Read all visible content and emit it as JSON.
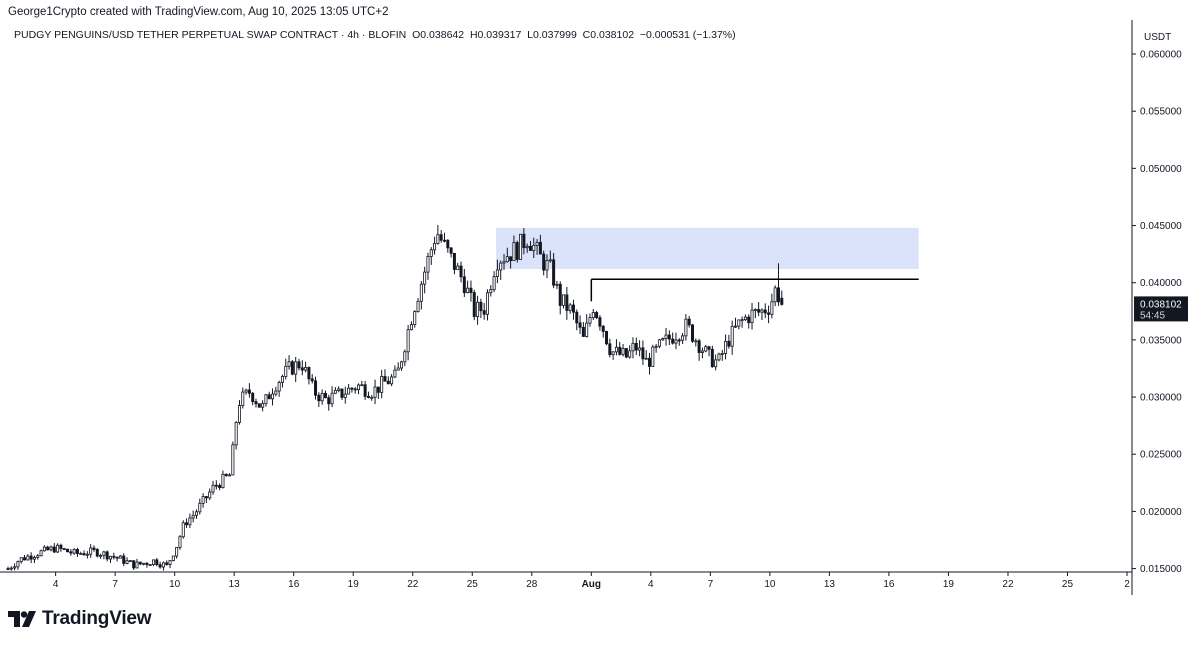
{
  "header": {
    "credit": "George1Crypto created with TradingView.com, Aug 10, 2025 13:05 UTC+2"
  },
  "legend": {
    "symbol": "PUDGY PENGUINS/USD TETHER PERPETUAL SWAP CONTRACT · 4h · BLOFIN",
    "open_label": "O",
    "open": "0.038642",
    "high_label": "H",
    "high": "0.039317",
    "low_label": "L",
    "low": "0.037999",
    "close_label": "C",
    "close": "0.038102",
    "change": "−0.000531 (−1.37%)"
  },
  "price_axis": {
    "currency": "USDT",
    "last_price": "0.038102",
    "countdown": "54:45"
  },
  "brand": {
    "name": "TradingView"
  },
  "colors": {
    "candle": "#131722",
    "zone": "#dbe3fb",
    "price_tag_bg": "#131722",
    "price_tag_fg": "#ffffff"
  },
  "chart_data": {
    "type": "candlestick",
    "timeframe": "4h",
    "ylim": [
      0.0147,
      0.0628
    ],
    "y_ticks": [
      "0.060000",
      "0.055000",
      "0.050000",
      "0.045000",
      "0.040000",
      "0.035000",
      "0.030000",
      "0.025000",
      "0.020000",
      "0.015000"
    ],
    "y_tick_values": [
      0.06,
      0.055,
      0.05,
      0.045,
      0.04,
      0.035,
      0.03,
      0.025,
      0.02,
      0.015
    ],
    "x_ticks": [
      {
        "label": "4",
        "day": 4
      },
      {
        "label": "7",
        "day": 7
      },
      {
        "label": "10",
        "day": 10
      },
      {
        "label": "13",
        "day": 13
      },
      {
        "label": "16",
        "day": 16
      },
      {
        "label": "19",
        "day": 19
      },
      {
        "label": "22",
        "day": 22
      },
      {
        "label": "25",
        "day": 25
      },
      {
        "label": "28",
        "day": 28
      },
      {
        "label": "Aug",
        "day": 31
      },
      {
        "label": "4",
        "day": 34
      },
      {
        "label": "7",
        "day": 37
      },
      {
        "label": "10",
        "day": 40
      },
      {
        "label": "13",
        "day": 43
      },
      {
        "label": "16",
        "day": 46
      },
      {
        "label": "19",
        "day": 49
      },
      {
        "label": "22",
        "day": 52
      },
      {
        "label": "25",
        "day": 55
      },
      {
        "label": "2",
        "day": 58
      }
    ],
    "x_range_days": [
      1.6,
      58.1
    ],
    "anchors": [
      [
        1.6,
        0.015
      ],
      [
        2.2,
        0.0158
      ],
      [
        3.0,
        0.0163
      ],
      [
        4.0,
        0.0168
      ],
      [
        5.0,
        0.0163
      ],
      [
        6.0,
        0.0165
      ],
      [
        7.0,
        0.016
      ],
      [
        8.0,
        0.0153
      ],
      [
        9.0,
        0.0157
      ],
      [
        9.6,
        0.0152
      ],
      [
        10.1,
        0.017
      ],
      [
        10.5,
        0.019
      ],
      [
        11.0,
        0.0198
      ],
      [
        12.0,
        0.0222
      ],
      [
        12.8,
        0.0232
      ],
      [
        13.2,
        0.0295
      ],
      [
        13.8,
        0.0305
      ],
      [
        14.4,
        0.029
      ],
      [
        15.0,
        0.031
      ],
      [
        15.8,
        0.0325
      ],
      [
        16.4,
        0.033
      ],
      [
        17.0,
        0.0305
      ],
      [
        17.6,
        0.0298
      ],
      [
        18.3,
        0.0302
      ],
      [
        19.2,
        0.031
      ],
      [
        20.0,
        0.0305
      ],
      [
        20.5,
        0.0312
      ],
      [
        21.2,
        0.0318
      ],
      [
        22.0,
        0.0375
      ],
      [
        22.6,
        0.041
      ],
      [
        23.2,
        0.0445
      ],
      [
        23.8,
        0.0425
      ],
      [
        24.6,
        0.04
      ],
      [
        25.1,
        0.0375
      ],
      [
        25.6,
        0.0378
      ],
      [
        26.2,
        0.042
      ],
      [
        26.8,
        0.0425
      ],
      [
        27.3,
        0.043
      ],
      [
        27.8,
        0.044
      ],
      [
        28.5,
        0.042
      ],
      [
        29.0,
        0.041
      ],
      [
        29.4,
        0.0385
      ],
      [
        30.0,
        0.0375
      ],
      [
        30.6,
        0.035
      ],
      [
        31.1,
        0.038
      ],
      [
        31.5,
        0.0365
      ],
      [
        32.0,
        0.034
      ],
      [
        32.8,
        0.0335
      ],
      [
        33.2,
        0.0345
      ],
      [
        33.8,
        0.033
      ],
      [
        34.5,
        0.0345
      ],
      [
        35.2,
        0.0355
      ],
      [
        35.8,
        0.0362
      ],
      [
        36.3,
        0.035
      ],
      [
        36.9,
        0.0335
      ],
      [
        37.4,
        0.033
      ],
      [
        37.9,
        0.035
      ],
      [
        38.5,
        0.0365
      ],
      [
        39.0,
        0.0372
      ],
      [
        39.6,
        0.0375
      ],
      [
        40.0,
        0.038
      ],
      [
        40.3,
        0.0395
      ],
      [
        40.5,
        0.0386
      ],
      [
        40.7,
        0.0381
      ]
    ],
    "resistance_zone": {
      "top": 0.0448,
      "bottom": 0.0412,
      "x_start_day": 26.2,
      "x_end_day": 47.5
    },
    "horizontal_level": {
      "price": 0.0403,
      "x_start_day": 31.0,
      "x_end_day": 47.5
    },
    "last_close": 0.038102
  }
}
